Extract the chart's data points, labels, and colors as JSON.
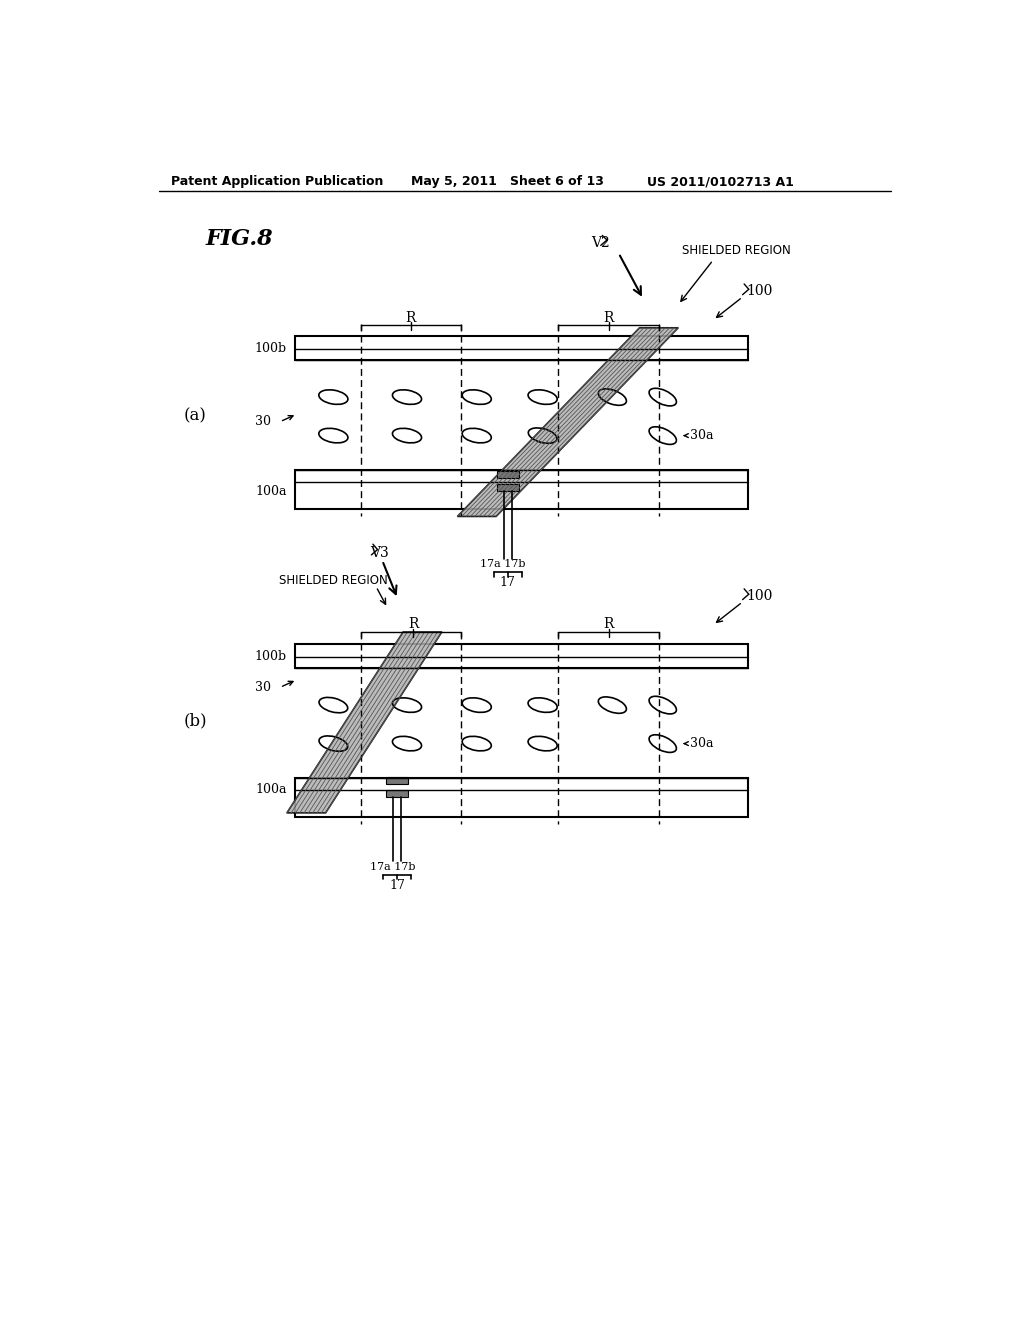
{
  "title": "FIG.8",
  "header_left": "Patent Application Publication",
  "header_mid": "May 5, 2011   Sheet 6 of 13",
  "header_right": "US 2011/0102713 A1",
  "bg_color": "#ffffff",
  "diagram_a_label": "(a)",
  "diagram_b_label": "(b)",
  "fig_label": "FIG.8",
  "shade_color": "#aaaaaa",
  "stripe_color": "#888888"
}
